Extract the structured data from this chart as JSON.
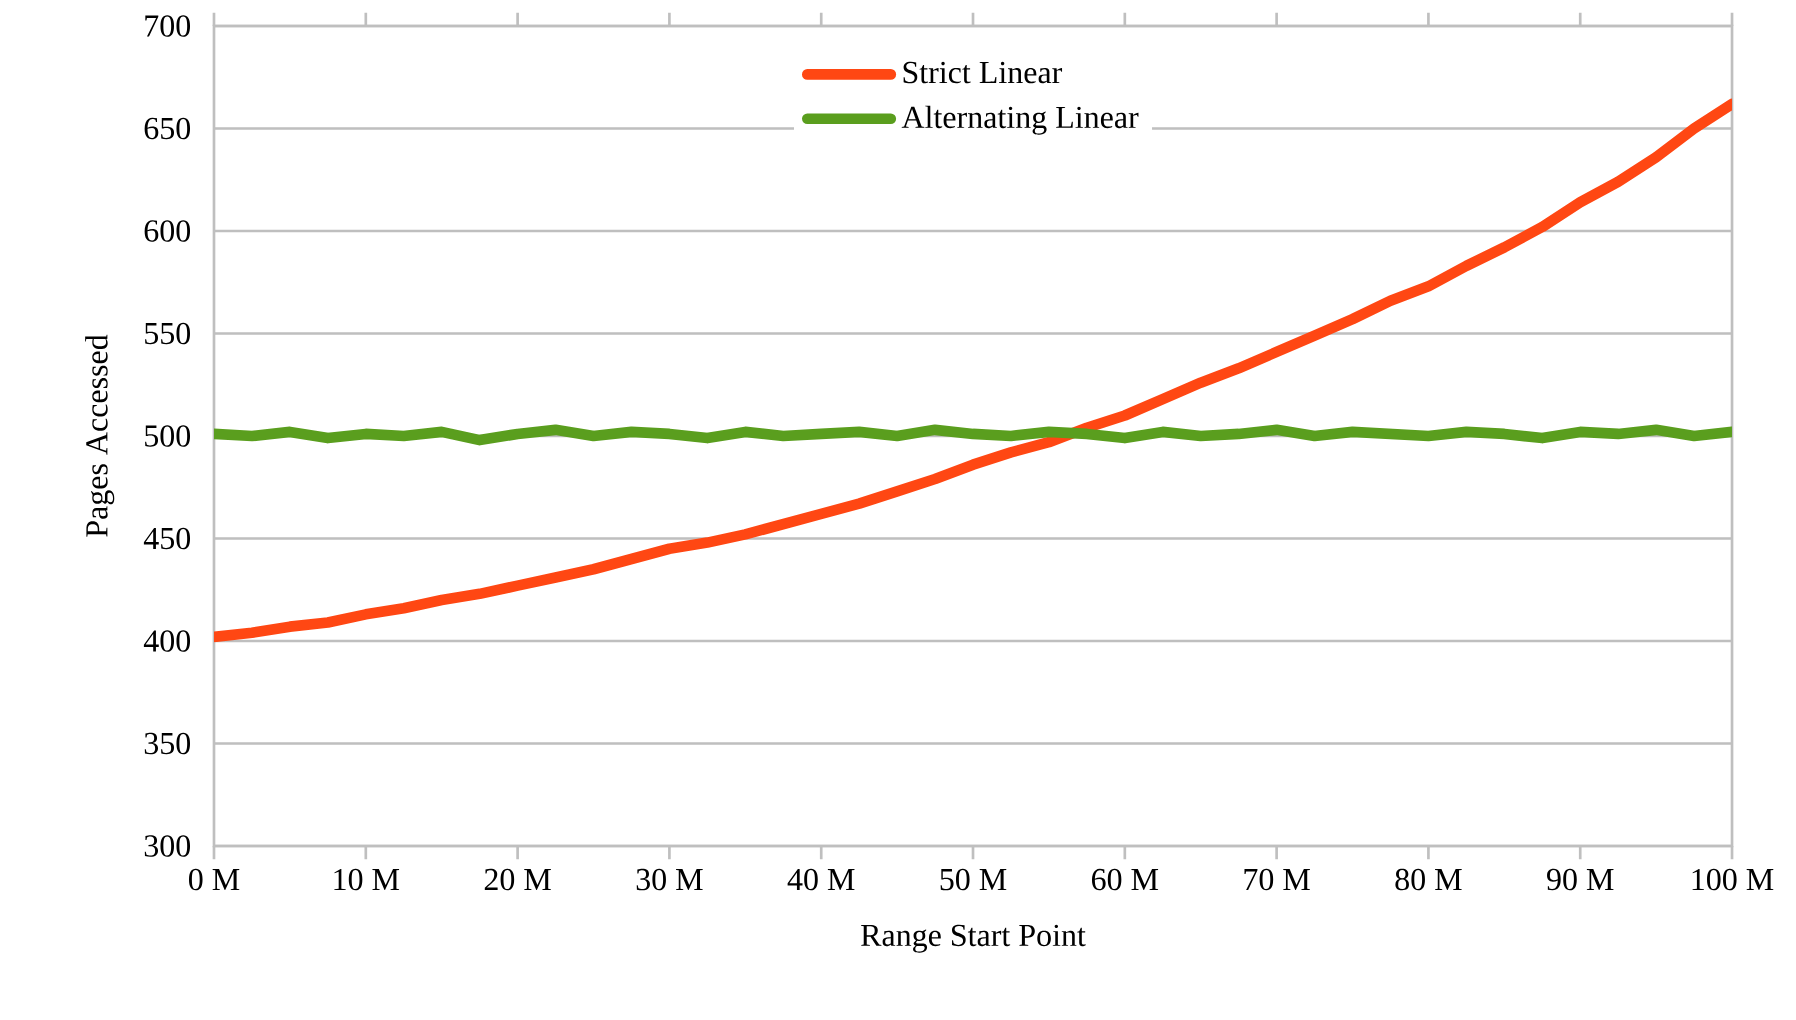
{
  "chart_data": {
    "type": "line",
    "xlabel": "Range Start Point",
    "ylabel": "Pages Accessed",
    "x": [
      0,
      2.5,
      5,
      7.5,
      10,
      12.5,
      15,
      17.5,
      20,
      22.5,
      25,
      27.5,
      30,
      32.5,
      35,
      37.5,
      40,
      42.5,
      45,
      47.5,
      50,
      52.5,
      55,
      57.5,
      60,
      62.5,
      65,
      67.5,
      70,
      72.5,
      75,
      77.5,
      80,
      82.5,
      85,
      87.5,
      90,
      92.5,
      95,
      97.5,
      100
    ],
    "series": [
      {
        "name": "Strict Linear",
        "color": "#ff4713",
        "values": [
          402,
          404,
          407,
          409,
          413,
          416,
          420,
          423,
          427,
          431,
          435,
          440,
          445,
          448,
          452,
          457,
          462,
          467,
          473,
          479,
          486,
          492,
          497,
          504,
          510,
          518,
          526,
          533,
          541,
          549,
          557,
          566,
          573,
          583,
          592,
          602,
          614,
          624,
          636,
          650,
          662
        ]
      },
      {
        "name": "Alternating Linear",
        "color": "#5a9e1e",
        "values": [
          501,
          500,
          502,
          499,
          501,
          500,
          502,
          498,
          501,
          503,
          500,
          502,
          501,
          499,
          502,
          500,
          501,
          502,
          500,
          503,
          501,
          500,
          502,
          501,
          499,
          502,
          500,
          501,
          503,
          500,
          502,
          501,
          500,
          502,
          501,
          499,
          502,
          501,
          503,
          500,
          502
        ]
      }
    ],
    "xlim": [
      0,
      100
    ],
    "xticks": [
      {
        "value": 0,
        "label": "0 M"
      },
      {
        "value": 10,
        "label": "10 M"
      },
      {
        "value": 20,
        "label": "20 M"
      },
      {
        "value": 30,
        "label": "30 M"
      },
      {
        "value": 40,
        "label": "40 M"
      },
      {
        "value": 50,
        "label": "50 M"
      },
      {
        "value": 60,
        "label": "60 M"
      },
      {
        "value": 70,
        "label": "70 M"
      },
      {
        "value": 80,
        "label": "80 M"
      },
      {
        "value": 90,
        "label": "90 M"
      },
      {
        "value": 100,
        "label": "100 M"
      }
    ],
    "ylim": [
      300,
      700
    ],
    "yticks": [
      300,
      350,
      400,
      450,
      500,
      550,
      600,
      650,
      700
    ],
    "grid": "y",
    "legend": "top",
    "marker": "none",
    "line_style": "solid"
  }
}
